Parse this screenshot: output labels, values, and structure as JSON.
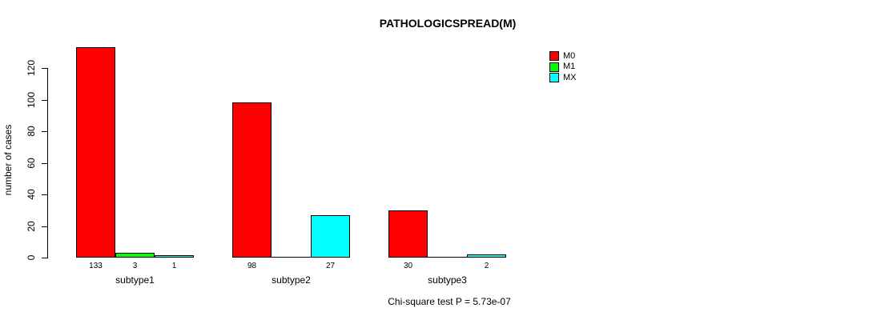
{
  "title": "PATHOLOGICSPREAD(M)",
  "footnote": "Chi-square test P = 5.73e-07",
  "chart_data": {
    "type": "bar",
    "grouped": true,
    "title": "PATHOLOGICSPREAD(M)",
    "xlabel": "",
    "ylabel": "number of cases",
    "categories": [
      "subtype1",
      "subtype2",
      "subtype3"
    ],
    "series": [
      {
        "name": "M0",
        "color": "#FF0000",
        "values": [
          133,
          98,
          30
        ]
      },
      {
        "name": "M1",
        "color": "#00FF00",
        "values": [
          3,
          0,
          0
        ]
      },
      {
        "name": "MX",
        "color": "#00FFFF",
        "values": [
          1,
          27,
          2
        ]
      }
    ],
    "yticks": [
      0,
      20,
      40,
      60,
      80,
      100,
      120
    ],
    "ylim": [
      0,
      133
    ],
    "grid": false,
    "bar_value_labels_shown": true,
    "legend_position": "right",
    "legend_entries": [
      "M0",
      "M1",
      "MX"
    ],
    "footnote": "Chi-square test P = 5.73e-07",
    "axis_color": "#000000",
    "background_color": "#FFFFFF"
  }
}
